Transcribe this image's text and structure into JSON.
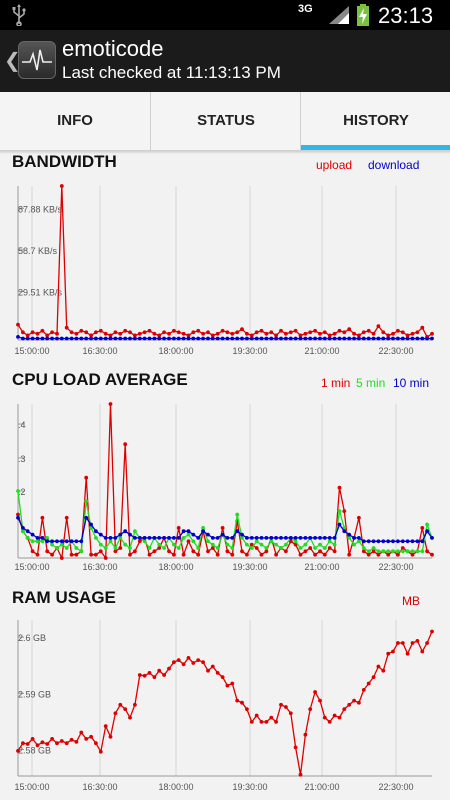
{
  "status_bar": {
    "network": "3G",
    "time": "23:13",
    "icons": [
      "usb-icon",
      "signal-icon",
      "battery-charging-icon"
    ]
  },
  "action_bar": {
    "title": "emoticode",
    "subtitle": "Last checked at 11:13:13 PM",
    "icons": [
      "back-chevron-icon",
      "app-pulse-icon"
    ]
  },
  "tabs": [
    {
      "label": "INFO",
      "active": false
    },
    {
      "label": "STATUS",
      "active": false
    },
    {
      "label": "HISTORY",
      "active": true
    }
  ],
  "colors": {
    "accent": "#33b5e5",
    "upload": "#dd0000",
    "download": "#0000cc",
    "one_min": "#dd0000",
    "five_min": "#22dd22",
    "ten_min": "#0000cc",
    "ram": "#dd0000"
  },
  "chart_data": [
    {
      "id": "bandwidth",
      "type": "line",
      "title": "BANDWIDTH",
      "x_tick_labels": [
        "15:00:00",
        "16:30:00",
        "18:00:00",
        "19:30:00",
        "21:00:00",
        "22:30:00"
      ],
      "y_tick_labels": [
        "87.88 KB/s",
        "58.7 KB/s",
        "29.51 KB/s"
      ],
      "x_range": [
        0,
        85
      ],
      "y_range": [
        0,
        100
      ],
      "grid": true,
      "series": [
        {
          "name": "upload",
          "color": "#dd0000",
          "values": [
            10,
            5,
            3,
            5,
            4,
            6,
            3,
            5,
            4,
            100,
            8,
            5,
            4,
            6,
            5,
            3,
            5,
            6,
            4,
            3,
            5,
            4,
            6,
            5,
            3,
            4,
            5,
            6,
            4,
            3,
            5,
            4,
            6,
            5,
            4,
            3,
            5,
            6,
            4,
            5,
            3,
            4,
            6,
            5,
            4,
            5,
            7,
            4,
            3,
            5,
            6,
            4,
            5,
            3,
            6,
            4,
            5,
            6,
            3,
            4,
            5,
            6,
            4,
            5,
            3,
            4,
            6,
            5,
            7,
            4,
            3,
            5,
            6,
            4,
            9,
            5,
            3,
            4,
            6,
            5,
            3,
            4,
            5,
            8,
            2,
            4
          ]
        },
        {
          "name": "download",
          "color": "#0000cc",
          "values": [
            2,
            1,
            1,
            1,
            1,
            1,
            1,
            1,
            1,
            1,
            1,
            1,
            1,
            1,
            1,
            1,
            1,
            1,
            1,
            1,
            1,
            1,
            1,
            1,
            1,
            1,
            1,
            1,
            1,
            1,
            1,
            1,
            1,
            1,
            1,
            1,
            1,
            1,
            1,
            1,
            1,
            1,
            1,
            1,
            1,
            1,
            1,
            1,
            1,
            1,
            1,
            1,
            1,
            1,
            1,
            1,
            1,
            1,
            1,
            1,
            1,
            1,
            1,
            1,
            1,
            1,
            1,
            1,
            1,
            1,
            1,
            1,
            1,
            1,
            1,
            1,
            1,
            1,
            1,
            1,
            1,
            1,
            1,
            1,
            1,
            1
          ]
        }
      ]
    },
    {
      "id": "cpu",
      "type": "line",
      "title": "CPU LOAD AVERAGE",
      "x_tick_labels": [
        "15:00:00",
        "16:30:00",
        "18:00:00",
        "19:30:00",
        "21:00:00",
        "22:30:00"
      ],
      "y_tick_labels": [
        ".4",
        ".3",
        ".2"
      ],
      "x_range": [
        0,
        85
      ],
      "y_range": [
        0,
        0.46
      ],
      "grid": true,
      "series": [
        {
          "name": "1 min",
          "color": "#dd0000",
          "values": [
            0.13,
            0.08,
            0.06,
            0.02,
            0.01,
            0.12,
            0.02,
            0.01,
            0.03,
            0.0,
            0.12,
            0.01,
            0.01,
            0.02,
            0.24,
            0.01,
            0.01,
            0.02,
            0.0,
            0.46,
            0.02,
            0.03,
            0.34,
            0.01,
            0.02,
            0.05,
            0.06,
            0.01,
            0.02,
            0.03,
            0.06,
            0.02,
            0.01,
            0.09,
            0.01,
            0.05,
            0.02,
            0.01,
            0.08,
            0.02,
            0.03,
            0.01,
            0.09,
            0.02,
            0.01,
            0.11,
            0.02,
            0.01,
            0.04,
            0.03,
            0.01,
            0.02,
            0.06,
            0.01,
            0.03,
            0.02,
            0.05,
            0.04,
            0.01,
            0.02,
            0.03,
            0.01,
            0.02,
            0.01,
            0.03,
            0.02,
            0.21,
            0.14,
            0.01,
            0.06,
            0.12,
            0.02,
            0.01,
            0.02,
            0.01,
            0.02,
            0.01,
            0.02,
            0.01,
            0.03,
            0.02,
            0.01,
            0.02,
            0.09,
            0.02,
            0.01
          ]
        },
        {
          "name": "5 min",
          "color": "#22dd22",
          "values": [
            0.2,
            0.08,
            0.06,
            0.05,
            0.05,
            0.05,
            0.06,
            0.04,
            0.03,
            0.04,
            0.03,
            0.05,
            0.03,
            0.02,
            0.17,
            0.09,
            0.06,
            0.04,
            0.03,
            0.05,
            0.03,
            0.06,
            0.04,
            0.03,
            0.08,
            0.06,
            0.05,
            0.03,
            0.06,
            0.04,
            0.03,
            0.06,
            0.04,
            0.03,
            0.06,
            0.07,
            0.05,
            0.03,
            0.09,
            0.05,
            0.04,
            0.03,
            0.07,
            0.04,
            0.03,
            0.13,
            0.06,
            0.04,
            0.03,
            0.05,
            0.04,
            0.03,
            0.05,
            0.04,
            0.03,
            0.04,
            0.06,
            0.05,
            0.03,
            0.04,
            0.06,
            0.03,
            0.04,
            0.03,
            0.05,
            0.04,
            0.14,
            0.09,
            0.06,
            0.04,
            0.05,
            0.03,
            0.02,
            0.03,
            0.02,
            0.02,
            0.02,
            0.02,
            0.02,
            0.02,
            0.02,
            0.02,
            0.02,
            0.02,
            0.1,
            0.06
          ]
        },
        {
          "name": "10 min",
          "color": "#0000cc",
          "values": [
            0.12,
            0.09,
            0.08,
            0.07,
            0.06,
            0.06,
            0.05,
            0.05,
            0.05,
            0.05,
            0.05,
            0.05,
            0.05,
            0.05,
            0.12,
            0.1,
            0.08,
            0.07,
            0.06,
            0.06,
            0.06,
            0.07,
            0.08,
            0.07,
            0.06,
            0.06,
            0.06,
            0.06,
            0.06,
            0.06,
            0.06,
            0.06,
            0.06,
            0.06,
            0.08,
            0.08,
            0.07,
            0.06,
            0.08,
            0.07,
            0.06,
            0.06,
            0.07,
            0.06,
            0.06,
            0.08,
            0.07,
            0.06,
            0.06,
            0.06,
            0.06,
            0.06,
            0.06,
            0.06,
            0.06,
            0.06,
            0.06,
            0.06,
            0.06,
            0.06,
            0.06,
            0.06,
            0.06,
            0.06,
            0.06,
            0.06,
            0.1,
            0.08,
            0.07,
            0.06,
            0.06,
            0.05,
            0.05,
            0.05,
            0.05,
            0.05,
            0.05,
            0.05,
            0.05,
            0.05,
            0.05,
            0.05,
            0.05,
            0.05,
            0.08,
            0.06
          ]
        }
      ]
    },
    {
      "id": "ram",
      "type": "line",
      "title": "RAM USAGE",
      "unit_label": "MB",
      "x_tick_labels": [
        "15:00:00",
        "16:30:00",
        "18:00:00",
        "19:30:00",
        "21:00:00",
        "22:30:00"
      ],
      "y_tick_labels": [
        "2.6 GB",
        "2.59 GB",
        "2.58 GB"
      ],
      "x_range": [
        0,
        85
      ],
      "y_range": [
        2.5703,
        2.6069
      ],
      "grid": true,
      "series": [
        {
          "name": "MB",
          "color": "#dd0000",
          "values": [
            2.5762,
            2.578,
            2.5778,
            2.579,
            2.5775,
            2.5782,
            2.5778,
            2.579,
            2.578,
            2.5785,
            2.578,
            2.5788,
            2.5783,
            2.5805,
            2.579,
            2.5795,
            2.578,
            2.576,
            2.582,
            2.5795,
            2.585,
            2.587,
            2.586,
            2.584,
            2.587,
            2.594,
            2.5938,
            2.5945,
            2.5935,
            2.595,
            2.594,
            2.5955,
            2.597,
            2.5975,
            2.5965,
            2.598,
            2.5968,
            2.5975,
            2.597,
            2.595,
            2.596,
            2.5945,
            2.5935,
            2.5915,
            2.592,
            2.588,
            2.5875,
            2.586,
            2.583,
            2.5845,
            2.583,
            2.583,
            2.584,
            2.583,
            2.587,
            2.5865,
            2.585,
            2.577,
            2.5706,
            2.58,
            2.586,
            2.59,
            2.588,
            2.584,
            2.583,
            2.5845,
            2.584,
            2.586,
            2.587,
            2.588,
            2.5875,
            2.5905,
            2.592,
            2.5935,
            2.596,
            2.595,
            2.599,
            2.5995,
            2.6015,
            2.6015,
            2.599,
            2.6015,
            2.602,
            2.5995,
            2.6015,
            2.6042
          ]
        }
      ]
    }
  ]
}
